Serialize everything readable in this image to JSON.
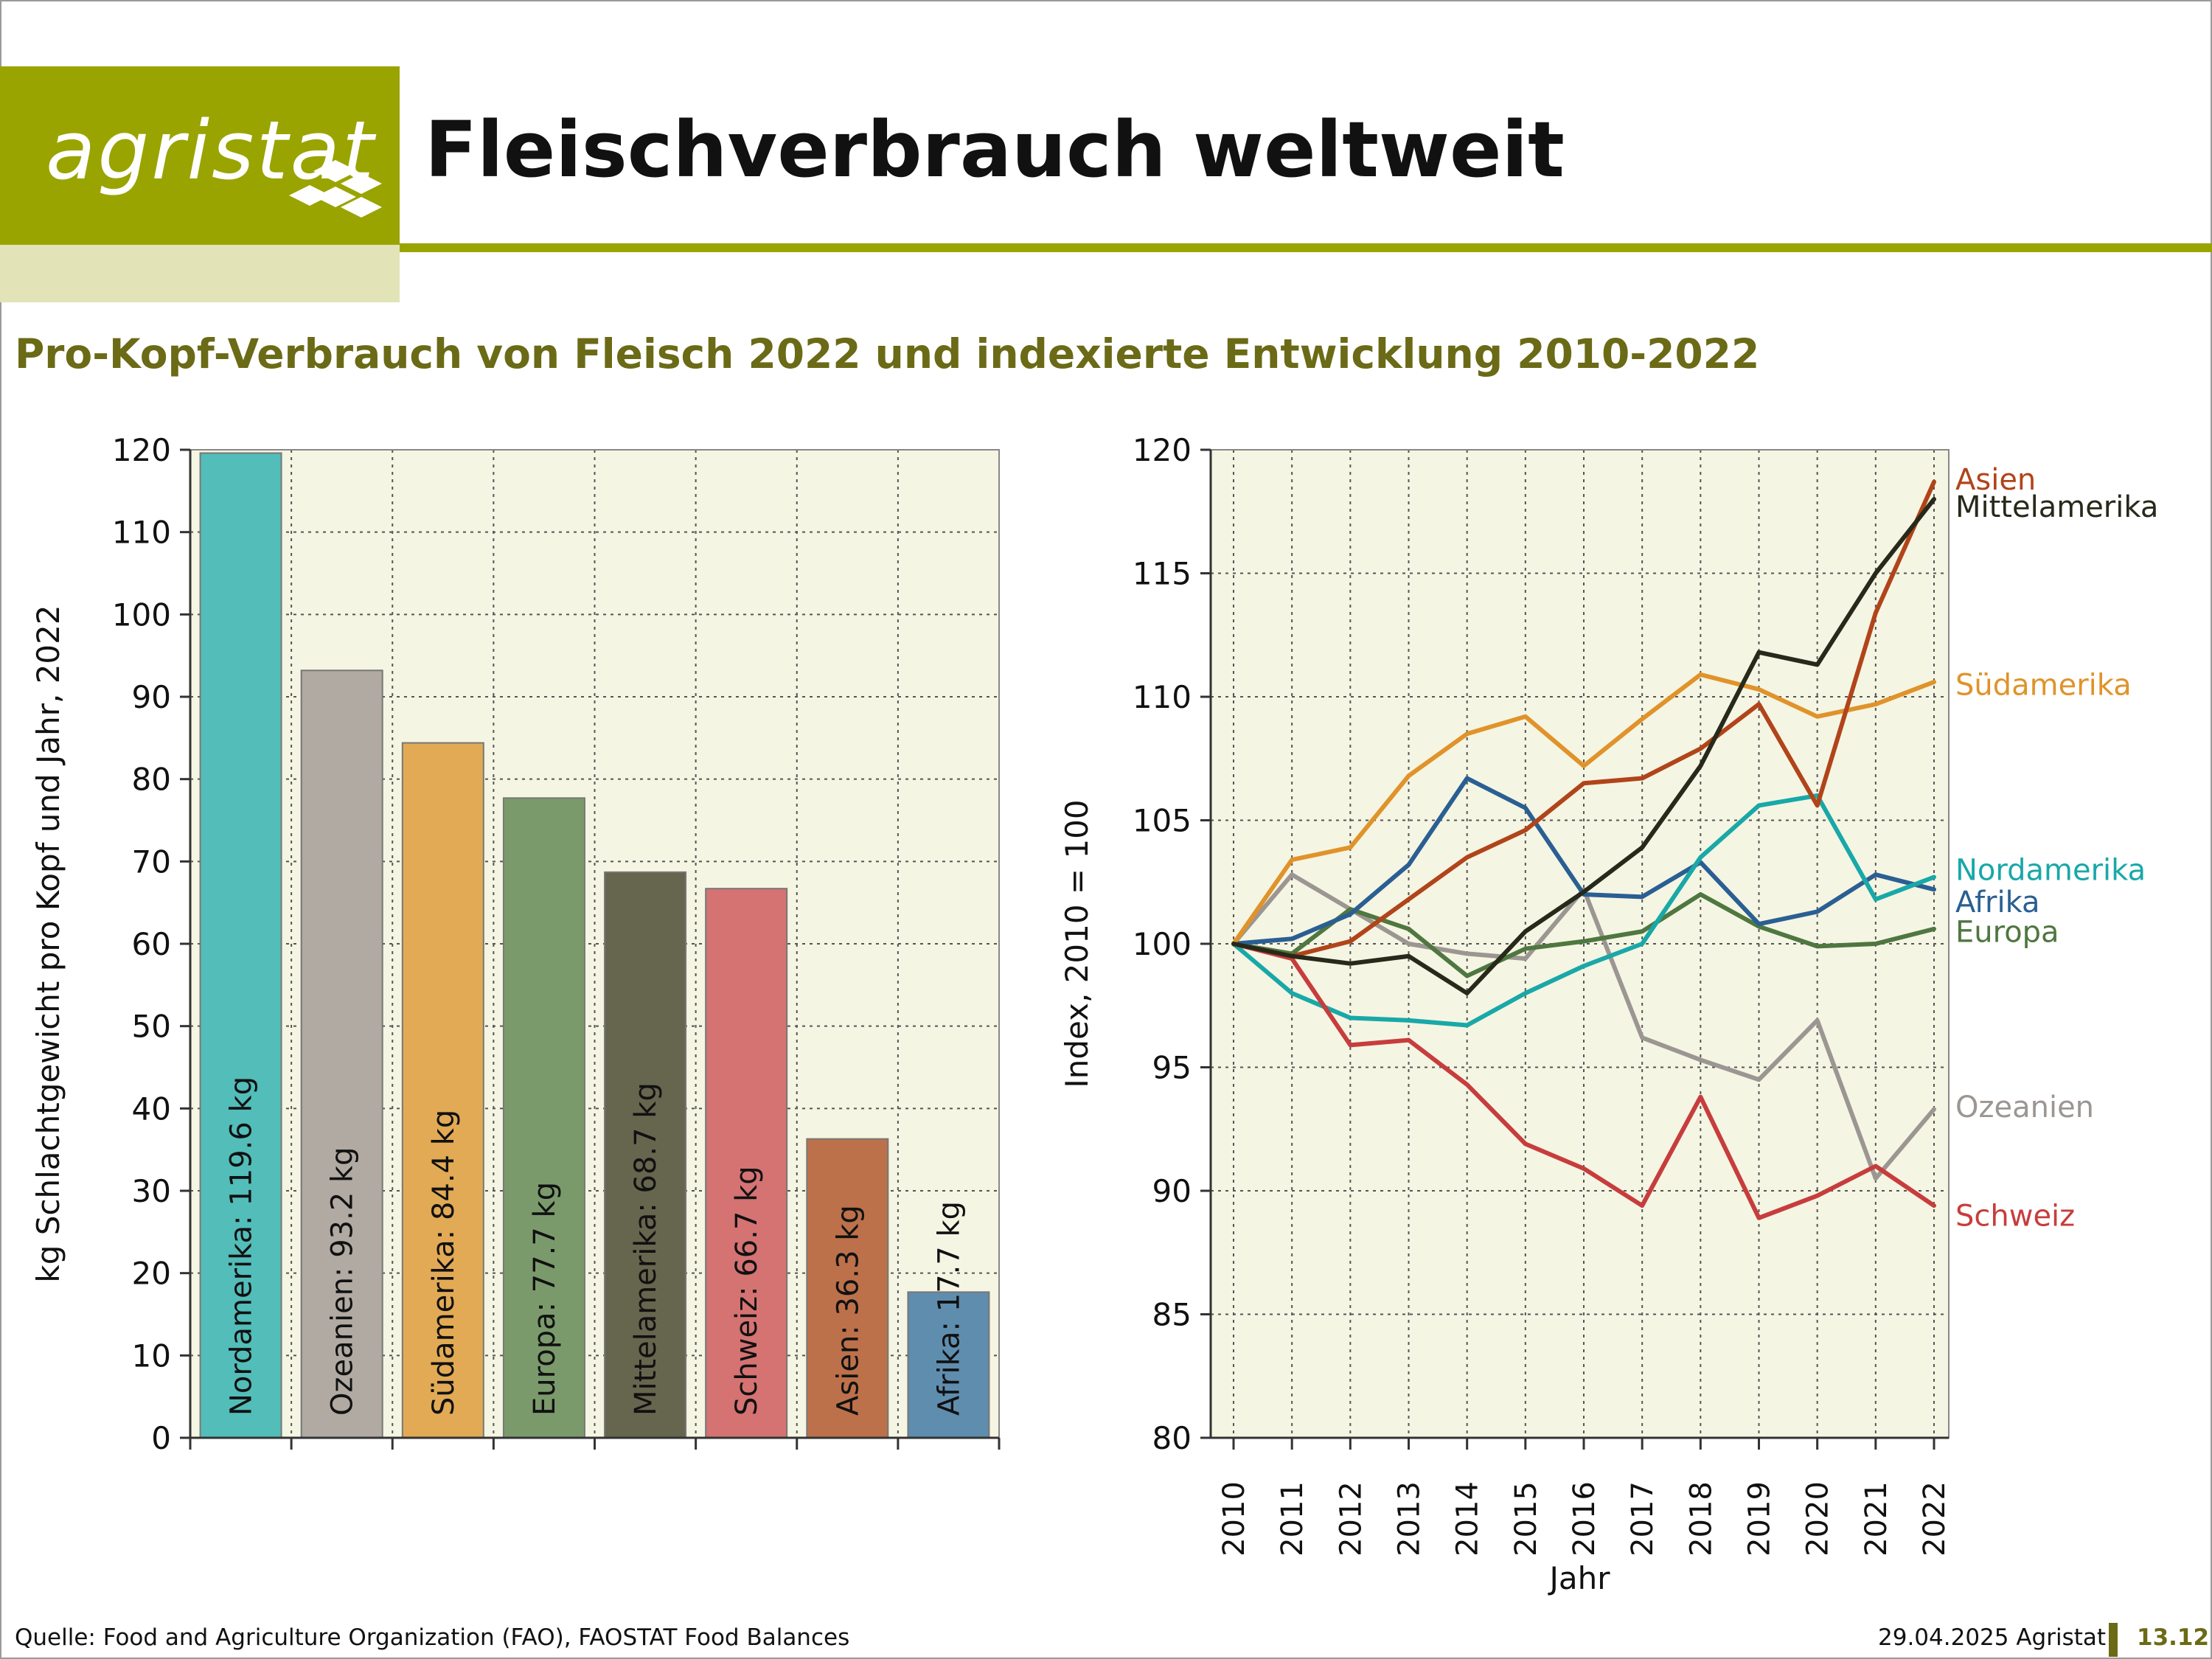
{
  "header": {
    "logo_text": "agristat",
    "title": "Fleischverbrauch weltweit",
    "subtitle": "Pro-Kopf-Verbrauch von Fleisch 2022 und indexierte Entwicklung 2010-2022"
  },
  "footer": {
    "source": "Quelle: Food and Agriculture Organization (FAO), FAOSTAT Food Balances",
    "date_org": "29.04.2025 Agristat",
    "page_number": "13.12"
  },
  "colors": {
    "brand": "#9aa400",
    "brand_light": "#e2e4b8",
    "subtitle": "#6b6a16",
    "plot_bg": "#f5f5e3"
  },
  "chart_data": [
    {
      "type": "bar",
      "ylabel": "kg Schlachtgewicht pro Kopf und Jahr, 2022",
      "ylim": [
        0,
        120
      ],
      "yticks": [
        0,
        10,
        20,
        30,
        40,
        50,
        60,
        70,
        80,
        90,
        100,
        110,
        120
      ],
      "grid": true,
      "categories": [
        "Nordamerika",
        "Ozeanien",
        "Südamerika",
        "Europa",
        "Mittelamerika",
        "Schweiz",
        "Asien",
        "Afrika"
      ],
      "values": [
        119.6,
        93.2,
        84.4,
        77.7,
        68.7,
        66.7,
        36.3,
        17.7
      ],
      "labels": [
        "Nordamerika: 119.6 kg",
        "Ozeanien: 93.2 kg",
        "Südamerika: 84.4 kg",
        "Europa: 77.7 kg",
        "Mittelamerika: 68.7 kg",
        "Schweiz: 66.7 kg",
        "Asien: 36.3 kg",
        "Afrika: 17.7 kg"
      ],
      "colors": [
        "#52bdb9",
        "#b0aaa2",
        "#e2aa55",
        "#7b9a6c",
        "#66654e",
        "#d47372",
        "#bc714a",
        "#5f8dae"
      ]
    },
    {
      "type": "line",
      "ylabel": "Index, 2010 = 100",
      "xlabel": "Jahr",
      "ylim": [
        80,
        120
      ],
      "yticks": [
        80,
        85,
        90,
        95,
        100,
        105,
        110,
        115,
        120
      ],
      "grid": true,
      "x": [
        2010,
        2011,
        2012,
        2013,
        2014,
        2015,
        2016,
        2017,
        2018,
        2019,
        2020,
        2021,
        2022
      ],
      "series": [
        {
          "name": "Ozeanien",
          "color": "#9c9693",
          "values": [
            100,
            102.8,
            101.4,
            100.0,
            99.6,
            99.4,
            102.2,
            96.2,
            95.3,
            94.5,
            96.9,
            90.5,
            93.3
          ]
        },
        {
          "name": "Europa",
          "color": "#4f7740",
          "values": [
            100,
            99.6,
            101.4,
            100.6,
            98.7,
            99.8,
            100.1,
            100.5,
            102.0,
            100.7,
            99.9,
            100.0,
            100.6
          ]
        },
        {
          "name": "Afrika",
          "color": "#2a5f93",
          "values": [
            100,
            100.2,
            101.2,
            103.2,
            106.7,
            105.5,
            102.0,
            101.9,
            103.3,
            100.8,
            101.3,
            102.8,
            102.2
          ]
        },
        {
          "name": "Nordamerika",
          "color": "#19a8a8",
          "values": [
            100,
            98.0,
            97.0,
            96.9,
            96.7,
            98.0,
            99.1,
            100.0,
            103.5,
            105.6,
            106.0,
            101.8,
            102.7
          ]
        },
        {
          "name": "Schweiz",
          "color": "#c73d3d",
          "values": [
            100,
            99.4,
            95.9,
            96.1,
            94.3,
            91.9,
            90.9,
            89.4,
            93.8,
            88.9,
            89.8,
            91.0,
            89.4
          ]
        },
        {
          "name": "Südamerika",
          "color": "#e0932a",
          "values": [
            100,
            103.4,
            103.9,
            106.8,
            108.5,
            109.2,
            107.2,
            109.1,
            110.9,
            110.3,
            109.2,
            109.7,
            110.6
          ]
        },
        {
          "name": "Asien",
          "color": "#b1441a",
          "values": [
            100,
            99.5,
            100.1,
            101.8,
            103.5,
            104.6,
            106.5,
            106.7,
            107.9,
            109.7,
            105.6,
            113.4,
            118.7
          ]
        },
        {
          "name": "Mittelamerika",
          "color": "#27291a",
          "values": [
            100,
            99.5,
            99.2,
            99.5,
            98.0,
            100.5,
            102.1,
            103.9,
            107.2,
            111.8,
            111.3,
            115.0,
            118.0
          ]
        }
      ],
      "legend": [
        {
          "name": "Asien",
          "color": "#b1441a"
        },
        {
          "name": "Mittelamerika",
          "color": "#27291a"
        },
        {
          "name": "Südamerika",
          "color": "#e0932a"
        },
        {
          "name": "Nordamerika",
          "color": "#19a8a8"
        },
        {
          "name": "Afrika",
          "color": "#2a5f93"
        },
        {
          "name": "Europa",
          "color": "#4f7740"
        },
        {
          "name": "Ozeanien",
          "color": "#9c9693"
        },
        {
          "name": "Schweiz",
          "color": "#c73d3d"
        }
      ]
    }
  ]
}
